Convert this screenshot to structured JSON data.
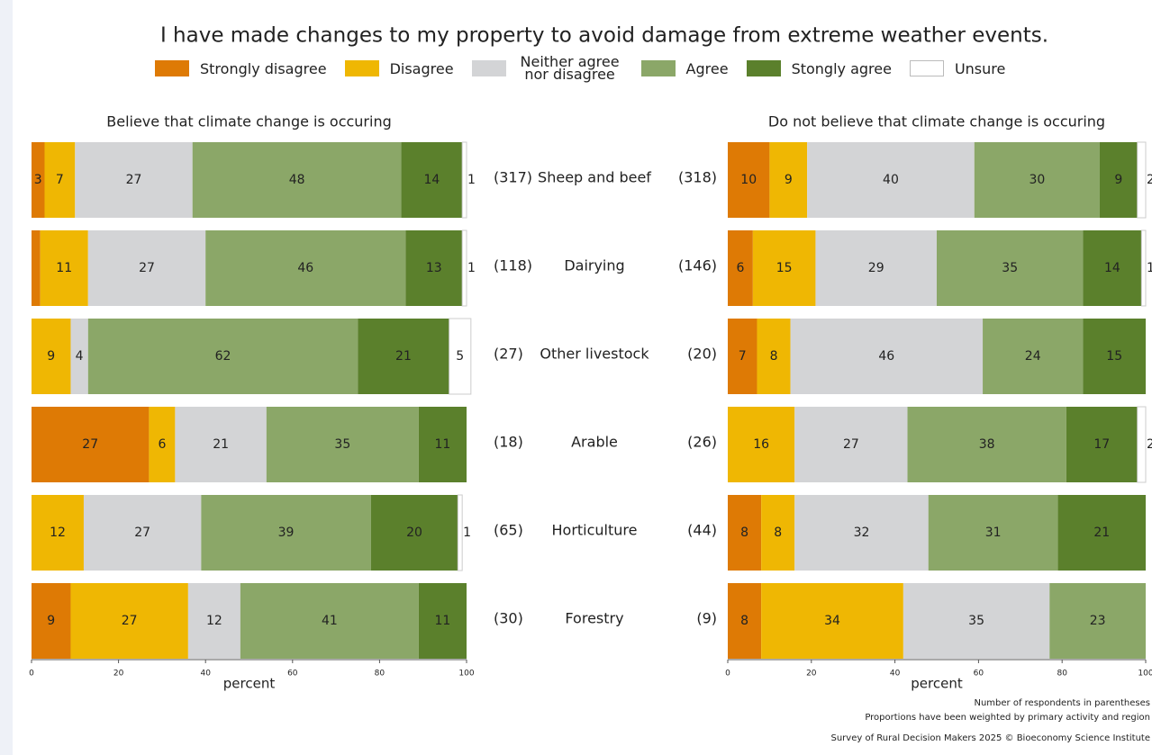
{
  "title": "I have made changes to my property to avoid damage from extreme weather events.",
  "footnotes": [
    "Number of respondents in parentheses",
    "Proportions have been weighted by primary activity and region",
    "Survey of Rural Decision Makers 2025 © Bioeconomy Science Institute"
  ],
  "chart_data": [
    {
      "type": "stacked_barh",
      "subtitle": "Believe that climate change is occuring",
      "categories": [
        "Sheep and beef",
        "Dairying",
        "Other livestock",
        "Arable",
        "Horticulture",
        "Forestry"
      ],
      "respondents": [
        "(317)",
        "(118)",
        "(27)",
        "(18)",
        "(65)",
        "(30)"
      ],
      "xlabel": "percent",
      "xlim": [
        0,
        100
      ],
      "xticks": [
        0,
        20,
        40,
        60,
        80,
        100
      ],
      "series": [
        {
          "name": "Strongly disagree",
          "color": "#de7a05",
          "values": [
            3,
            2,
            0,
            27,
            0,
            9
          ]
        },
        {
          "name": "Disagree",
          "color": "#efb703",
          "values": [
            7,
            11,
            9,
            6,
            12,
            27
          ]
        },
        {
          "name": "Neither agree nor disagree",
          "color": "#d3d4d6",
          "values": [
            27,
            27,
            4,
            21,
            27,
            12
          ]
        },
        {
          "name": "Agree",
          "color": "#8ba768",
          "values": [
            48,
            46,
            62,
            35,
            39,
            41
          ]
        },
        {
          "name": "Stongly agree",
          "color": "#5b802c",
          "values": [
            14,
            13,
            21,
            11,
            20,
            11
          ]
        },
        {
          "name": "Unsure",
          "color": "#ffffff",
          "values": [
            1,
            1,
            5,
            0,
            1,
            0
          ]
        }
      ]
    },
    {
      "type": "stacked_barh",
      "subtitle": "Do not believe that climate change is occuring",
      "respondents": [
        "(318)",
        "(146)",
        "(20)",
        "(26)",
        "(44)",
        "(9)"
      ],
      "xlabel": "percent",
      "xlim": [
        0,
        100
      ],
      "xticks": [
        0,
        20,
        40,
        60,
        80,
        100
      ],
      "series": [
        {
          "values": [
            10,
            6,
            7,
            0,
            8,
            8
          ]
        },
        {
          "values": [
            9,
            15,
            8,
            16,
            8,
            34
          ]
        },
        {
          "values": [
            40,
            29,
            46,
            27,
            32,
            35
          ]
        },
        {
          "values": [
            30,
            35,
            24,
            38,
            31,
            23
          ]
        },
        {
          "values": [
            9,
            14,
            15,
            17,
            21,
            0
          ]
        },
        {
          "values": [
            2,
            1,
            0,
            2,
            0,
            0
          ]
        }
      ]
    }
  ]
}
